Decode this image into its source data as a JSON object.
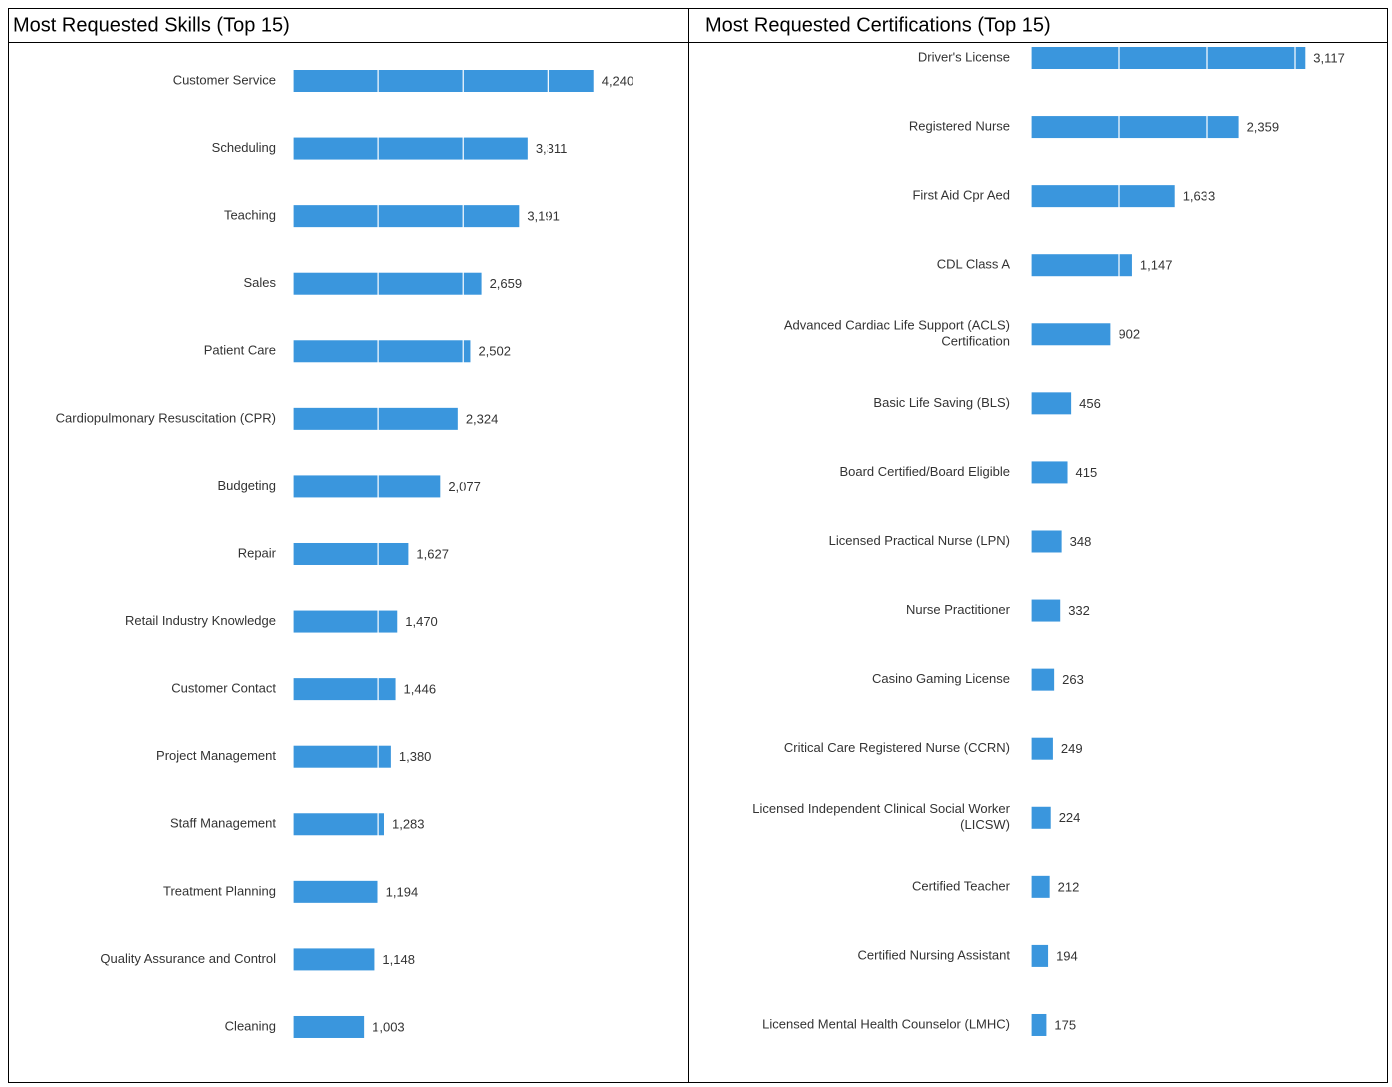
{
  "chart_data": [
    {
      "type": "bar",
      "orientation": "horizontal",
      "title": "Most Requested Skills (Top 15)",
      "categories": [
        "Customer Service",
        "Scheduling",
        "Teaching",
        "Sales",
        "Patient Care",
        "Cardiopulmonary Resuscitation (CPR)",
        "Budgeting",
        "Repair",
        "Retail Industry Knowledge",
        "Customer Contact",
        "Project Management",
        "Staff Management",
        "Treatment Planning",
        "Quality Assurance and Control",
        "Cleaning"
      ],
      "values": [
        4240,
        3311,
        3191,
        2659,
        2502,
        2324,
        2077,
        1627,
        1470,
        1446,
        1380,
        1283,
        1194,
        1148,
        1003
      ],
      "value_labels": [
        "4,240",
        "3,311",
        "3,191",
        "2,659",
        "2,502",
        "2,324",
        "2,077",
        "1,627",
        "1,470",
        "1,446",
        "1,380",
        "1,283",
        "1,194",
        "1,148",
        "1,003"
      ],
      "color": "#3a96dd",
      "xlim": [
        0,
        5400
      ],
      "xticks": [
        0,
        1200,
        2400,
        3600,
        4800
      ],
      "grid": true
    },
    {
      "type": "bar",
      "orientation": "horizontal",
      "title": "Most Requested Certifications (Top 15)",
      "categories": [
        "Driver's License",
        "Registered Nurse",
        "First Aid Cpr Aed",
        "CDL Class A",
        "Advanced Cardiac Life Support (ACLS) Certification",
        "Basic Life Saving (BLS)",
        "Board Certified/Board Eligible",
        "Licensed Practical Nurse (LPN)",
        "Nurse Practitioner",
        "Casino Gaming License",
        "Critical Care Registered Nurse (CCRN)",
        "Licensed Independent Clinical Social Worker (LICSW)",
        "Certified Teacher",
        "Certified Nursing Assistant",
        "Licensed Mental Health Counselor (LMHC)"
      ],
      "values": [
        3117,
        2359,
        1633,
        1147,
        902,
        456,
        415,
        348,
        332,
        263,
        249,
        224,
        212,
        194,
        175
      ],
      "value_labels": [
        "3,117",
        "2,359",
        "1,633",
        "1,147",
        "902",
        "456",
        "415",
        "348",
        "332",
        "263",
        "249",
        "224",
        "212",
        "194",
        "175"
      ],
      "color": "#3a96dd",
      "xlim": [
        0,
        4000
      ],
      "xticks": [
        0,
        1000,
        2000,
        3000
      ],
      "grid": true
    }
  ]
}
